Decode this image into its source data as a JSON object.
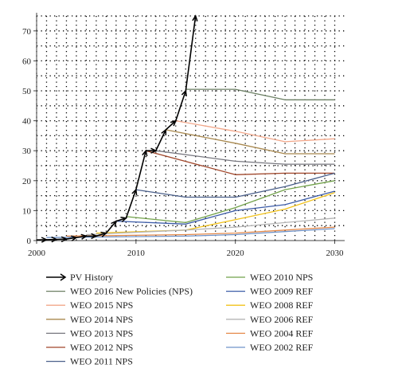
{
  "chart_data": {
    "type": "line",
    "title": "",
    "xlabel": "",
    "ylabel": "",
    "xlim": [
      2000,
      2031
    ],
    "ylim": [
      0,
      75
    ],
    "x_ticks": [
      "2000",
      "2010",
      "2020",
      "2030"
    ],
    "y_ticks": [
      "0",
      "10",
      "20",
      "30",
      "40",
      "50",
      "60",
      "70"
    ],
    "grid": true,
    "legend_position": "bottom",
    "series": [
      {
        "name": "PV History",
        "color": "#000000",
        "marker": "arrow",
        "points": [
          [
            2000,
            0.2
          ],
          [
            2001,
            0.3
          ],
          [
            2002,
            0.4
          ],
          [
            2003,
            0.5
          ],
          [
            2004,
            1
          ],
          [
            2005,
            1.5
          ],
          [
            2006,
            1.5
          ],
          [
            2007,
            2.5
          ],
          [
            2008,
            6.5
          ],
          [
            2009,
            7.5
          ],
          [
            2010,
            17
          ],
          [
            2011,
            30
          ],
          [
            2012,
            30
          ],
          [
            2013,
            37
          ],
          [
            2014,
            40
          ],
          [
            2015,
            50
          ],
          [
            2016,
            75
          ]
        ]
      },
      {
        "name": "WEO 2016 New Policies (NPS)",
        "color": "#6b7f63",
        "points": [
          [
            2015,
            50.5
          ],
          [
            2020,
            50.5
          ],
          [
            2025,
            47
          ],
          [
            2030,
            47
          ]
        ]
      },
      {
        "name": "WEO 2015 NPS",
        "color": "#f2a78a",
        "points": [
          [
            2014,
            40
          ],
          [
            2020,
            36.5
          ],
          [
            2025,
            33
          ],
          [
            2030,
            34
          ]
        ]
      },
      {
        "name": "WEO 2014 NPS",
        "color": "#a8884e",
        "points": [
          [
            2013,
            37
          ],
          [
            2020,
            32.5
          ],
          [
            2025,
            29
          ],
          [
            2030,
            29
          ]
        ]
      },
      {
        "name": "WEO 2013 NPS",
        "color": "#77777f",
        "points": [
          [
            2012,
            30
          ],
          [
            2020,
            26.5
          ],
          [
            2025,
            25.5
          ],
          [
            2030,
            25.5
          ]
        ]
      },
      {
        "name": "WEO 2012 NPS",
        "color": "#a0462a",
        "points": [
          [
            2011,
            30
          ],
          [
            2020,
            22
          ],
          [
            2025,
            22.5
          ],
          [
            2030,
            22.5
          ]
        ]
      },
      {
        "name": "WEO 2011 NPS",
        "color": "#4a5f8a",
        "points": [
          [
            2010,
            17
          ],
          [
            2015,
            14.5
          ],
          [
            2020,
            14.5
          ],
          [
            2025,
            18
          ],
          [
            2030,
            22.5
          ]
        ]
      },
      {
        "name": "WEO 2010 NPS",
        "color": "#72a24a",
        "points": [
          [
            2009,
            8
          ],
          [
            2015,
            6
          ],
          [
            2020,
            11
          ],
          [
            2025,
            17
          ],
          [
            2030,
            20
          ]
        ]
      },
      {
        "name": "WEO 2009 REF",
        "color": "#3c5ca8",
        "points": [
          [
            2008,
            6.5
          ],
          [
            2015,
            5.5
          ],
          [
            2020,
            10
          ],
          [
            2025,
            12
          ],
          [
            2030,
            16.5
          ]
        ]
      },
      {
        "name": "WEO 2008 REF",
        "color": "#f2c21a",
        "points": [
          [
            2006,
            2.5
          ],
          [
            2015,
            3.5
          ],
          [
            2020,
            7
          ],
          [
            2025,
            10.5
          ],
          [
            2030,
            16
          ]
        ]
      },
      {
        "name": "WEO 2006 REF",
        "color": "#b4b4b4",
        "points": [
          [
            2005,
            2
          ],
          [
            2015,
            3.5
          ],
          [
            2020,
            4.5
          ],
          [
            2025,
            6
          ],
          [
            2030,
            7.5
          ]
        ]
      },
      {
        "name": "WEO 2004 REF",
        "color": "#e58a4a",
        "points": [
          [
            2003,
            1.5
          ],
          [
            2015,
            2
          ],
          [
            2020,
            2.5
          ],
          [
            2025,
            3.5
          ],
          [
            2030,
            4.5
          ]
        ]
      },
      {
        "name": "WEO 2002 REF",
        "color": "#6f93c9",
        "points": [
          [
            2001,
            1
          ],
          [
            2015,
            1.5
          ],
          [
            2020,
            2
          ],
          [
            2025,
            3
          ],
          [
            2030,
            4
          ]
        ]
      }
    ]
  }
}
